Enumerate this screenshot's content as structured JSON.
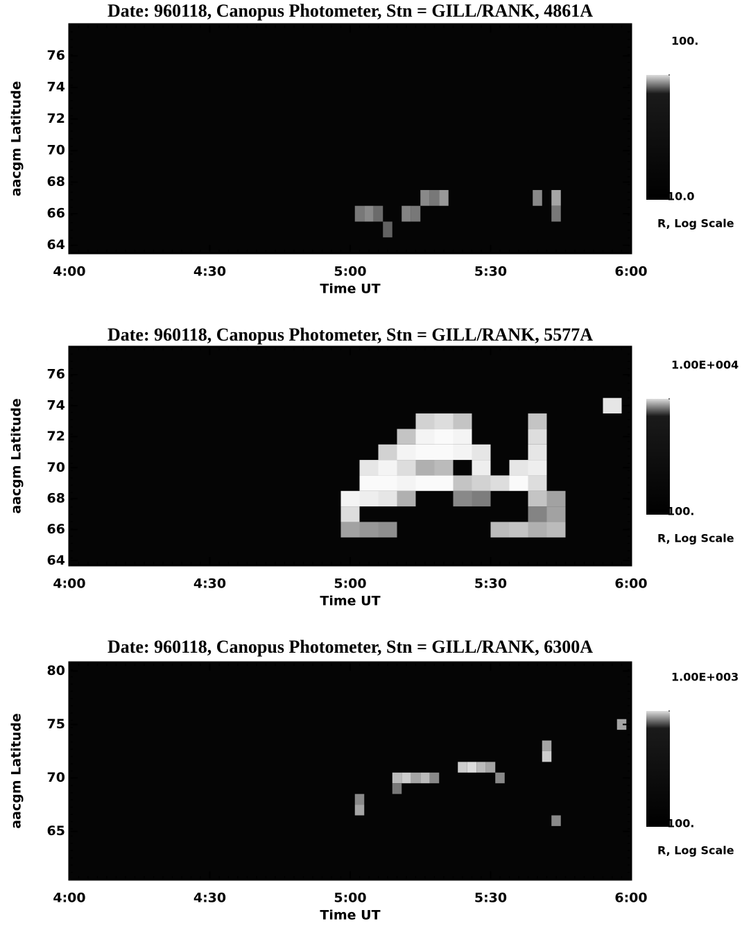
{
  "chart_data": [
    {
      "type": "heatmap",
      "title": "Date: 960118, Canopus  Photometer, Stn = GILL/RANK, 4861A",
      "x_label": "Time UT",
      "y_label": "aacgm Latitude",
      "xlim": [
        240,
        360
      ],
      "xticks": [
        {
          "value": 240,
          "label": "4:00"
        },
        {
          "value": 270,
          "label": "4:30"
        },
        {
          "value": 300,
          "label": "5:00"
        },
        {
          "value": 330,
          "label": "5:30"
        },
        {
          "value": 360,
          "label": "6:00"
        }
      ],
      "ylim": [
        63.5,
        78
      ],
      "yticks": [
        64,
        66,
        68,
        70,
        72,
        74,
        76
      ],
      "colorbar_label": "R, Log Scale",
      "color_log_scale": true,
      "clim": [
        10,
        100
      ],
      "colorbar_ticks": [
        {
          "value": 100,
          "label": "100."
        },
        {
          "value": 10,
          "label": "10.0"
        }
      ],
      "x": [
        302,
        304,
        306,
        308,
        312,
        314,
        316,
        318,
        320,
        340,
        344,
        344
      ],
      "y": [
        66,
        66,
        66,
        65,
        66,
        66,
        67,
        67,
        67,
        67,
        67,
        66
      ],
      "values": [
        25,
        30,
        22,
        20,
        28,
        25,
        30,
        25,
        35,
        30,
        40,
        25
      ]
    },
    {
      "type": "heatmap",
      "title": "Date: 960118, Canopus  Photometer, Stn = GILL/RANK, 5577A",
      "x_label": "Time UT",
      "y_label": "aacgm Latitude",
      "xlim": [
        240,
        360
      ],
      "xticks": [
        {
          "value": 240,
          "label": "4:00"
        },
        {
          "value": 270,
          "label": "4:30"
        },
        {
          "value": 300,
          "label": "5:00"
        },
        {
          "value": 330,
          "label": "5:30"
        },
        {
          "value": 360,
          "label": "6:00"
        }
      ],
      "ylim": [
        63.7,
        77.8
      ],
      "yticks": [
        64,
        66,
        68,
        70,
        72,
        74,
        76
      ],
      "colorbar_label": "R, Log Scale",
      "color_log_scale": true,
      "clim": [
        100,
        10000
      ],
      "colorbar_ticks": [
        {
          "value": 10000,
          "label": "1.00E+004"
        },
        {
          "value": 100,
          "label": "100."
        }
      ],
      "x": [
        300,
        304,
        308,
        332,
        336,
        340,
        344,
        300,
        340,
        344,
        300,
        304,
        308,
        312,
        324,
        328,
        340,
        344,
        304,
        308,
        312,
        316,
        320,
        324,
        328,
        332,
        336,
        340,
        304,
        308,
        312,
        316,
        320,
        328,
        336,
        340,
        308,
        312,
        316,
        320,
        324,
        328,
        340,
        312,
        316,
        320,
        324,
        340,
        316,
        320,
        324,
        340,
        356
      ],
      "y": [
        66,
        66,
        66,
        66,
        66,
        66,
        66,
        67,
        67,
        67,
        68,
        68,
        68,
        68,
        68,
        68,
        68,
        68,
        69,
        69,
        69,
        69,
        69,
        69,
        69,
        69,
        69,
        69,
        70,
        70,
        70,
        70,
        70,
        70,
        70,
        70,
        71,
        71,
        71,
        71,
        71,
        71,
        71,
        72,
        72,
        72,
        72,
        72,
        73,
        73,
        73,
        73,
        74
      ],
      "values": [
        1500,
        1200,
        1000,
        2500,
        3000,
        2000,
        2500,
        5000,
        800,
        1500,
        8000,
        7000,
        6000,
        2000,
        900,
        700,
        3000,
        1500,
        9000,
        9000,
        8000,
        9000,
        9000,
        3000,
        4000,
        5000,
        9000,
        5000,
        6000,
        8000,
        5000,
        2000,
        2500,
        7000,
        6000,
        7000,
        4000,
        8000,
        9000,
        9000,
        8000,
        6000,
        6000,
        3000,
        8000,
        9000,
        8000,
        5000,
        4000,
        5000,
        3000,
        3000,
        6000
      ]
    },
    {
      "type": "heatmap",
      "title": "Date: 960118, Canopus  Photometer, Stn = GILL/RANK, 6300A",
      "x_label": "Time UT",
      "y_label": "aacgm Latitude",
      "xlim": [
        240,
        360
      ],
      "xticks": [
        {
          "value": 240,
          "label": "4:00"
        },
        {
          "value": 270,
          "label": "4:30"
        },
        {
          "value": 300,
          "label": "5:00"
        },
        {
          "value": 330,
          "label": "5:30"
        },
        {
          "value": 360,
          "label": "6:00"
        }
      ],
      "ylim": [
        60.5,
        80.8
      ],
      "yticks": [
        65,
        70,
        75,
        80
      ],
      "colorbar_label": "R, Log Scale",
      "color_log_scale": true,
      "clim": [
        100,
        1000
      ],
      "colorbar_ticks": [
        {
          "value": 1000,
          "label": "1.00E+003"
        },
        {
          "value": 100,
          "label": "100."
        }
      ],
      "x": [
        302,
        302,
        310,
        312,
        314,
        316,
        318,
        310,
        324,
        326,
        328,
        330,
        332,
        342,
        342,
        344,
        358
      ],
      "y": [
        67,
        68,
        70,
        70,
        70,
        70,
        70,
        69,
        71,
        71,
        71,
        71,
        70,
        72,
        73,
        66,
        75
      ],
      "values": [
        400,
        300,
        500,
        600,
        400,
        500,
        300,
        250,
        600,
        700,
        500,
        400,
        300,
        600,
        400,
        300,
        400
      ]
    }
  ]
}
